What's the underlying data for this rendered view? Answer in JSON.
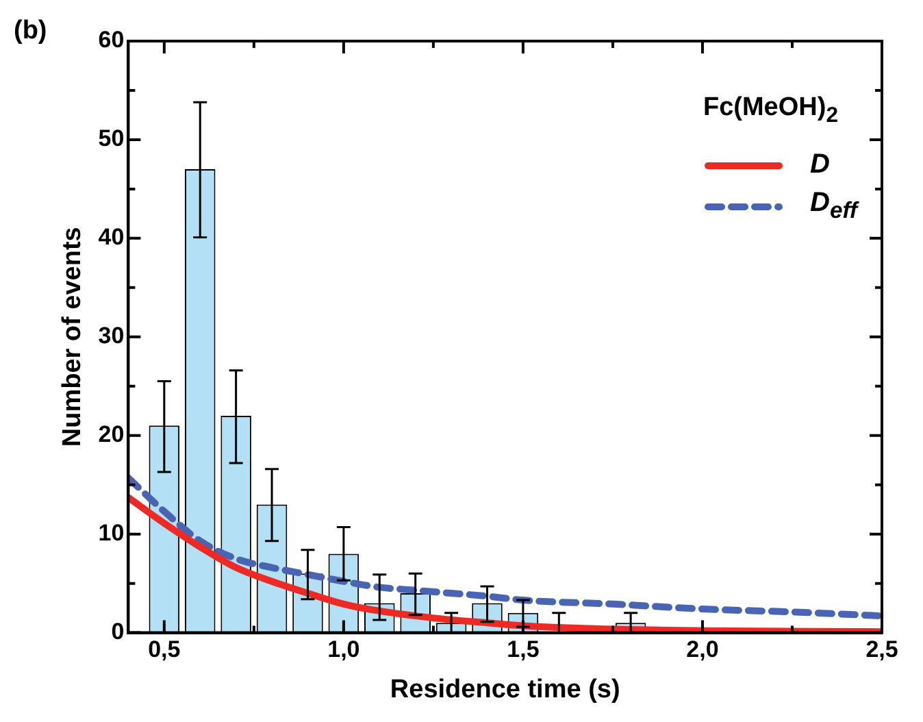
{
  "chart_data": {
    "type": "bar",
    "xlabel": "Residence time (s)",
    "ylabel": "Number of events",
    "legend_title": "Fc(MeOH)$_{2}$",
    "annotations": [
      "(b)"
    ],
    "x": [
      0.5,
      0.6,
      0.7,
      0.8,
      0.9,
      1.0,
      1.1,
      1.2,
      1.3,
      1.4,
      1.5,
      1.6,
      1.8
    ],
    "values": [
      21,
      47,
      22,
      13,
      6,
      8,
      3,
      4,
      1,
      3,
      2,
      0,
      1
    ],
    "errors": [
      [
        16.3,
        25.5
      ],
      [
        40.1,
        53.8
      ],
      [
        17.2,
        26.6
      ],
      [
        9.3,
        16.6
      ],
      [
        3.4,
        8.4
      ],
      [
        5.3,
        10.7
      ],
      [
        1.3,
        5.9
      ],
      [
        1.8,
        6
      ],
      [
        0,
        2
      ],
      [
        1.1,
        4.7
      ],
      [
        0.6,
        3.3
      ],
      [
        0,
        2
      ],
      [
        0,
        2
      ]
    ],
    "color": "#b3e0f5",
    "series": [
      {
        "type": "line",
        "name": "D",
        "color": "#ee2a24",
        "line_style": "solid",
        "x": [
          0.4,
          0.5,
          0.6,
          0.7,
          0.8,
          0.9,
          1.0,
          1.1,
          1.2,
          1.3,
          1.4,
          1.5,
          1.7,
          2.0,
          2.5
        ],
        "values": [
          13.7,
          11.1,
          8.7,
          6.6,
          5.2,
          4.0,
          2.9,
          2.2,
          1.7,
          1.3,
          1.0,
          0.7,
          0.4,
          0.2,
          0.1
        ]
      },
      {
        "type": "line",
        "name": "D$_{eff}$",
        "color": "#4a64b4",
        "line_style": "dashed",
        "x": [
          0.4,
          0.5,
          0.6,
          0.7,
          0.8,
          0.9,
          1.0,
          1.1,
          1.2,
          1.3,
          1.4,
          1.5,
          1.75,
          2.0,
          2.25,
          2.5
        ],
        "values": [
          15.7,
          12.3,
          9.3,
          7.5,
          6.6,
          5.9,
          5.2,
          4.6,
          4.3,
          4.0,
          3.7,
          3.3,
          2.9,
          2.4,
          2.1,
          1.7
        ]
      }
    ],
    "xlim": [
      0.4,
      2.5
    ],
    "ylim": [
      0,
      60
    ],
    "xticks": [
      {
        "value": 0.5,
        "label": "0,5"
      },
      {
        "value": 0.75,
        "label": null
      },
      {
        "value": 1.0,
        "label": "1,0"
      },
      {
        "value": 1.25,
        "label": null
      },
      {
        "value": 1.5,
        "label": "1,5"
      },
      {
        "value": 1.75,
        "label": null
      },
      {
        "value": 2.0,
        "label": "2,0"
      },
      {
        "value": 2.25,
        "label": null
      },
      {
        "value": 2.5,
        "label": "2,5"
      }
    ],
    "yticks": [
      0,
      {
        "value": 5,
        "label": null
      },
      10,
      {
        "value": 15,
        "label": null
      },
      20,
      {
        "value": 25,
        "label": null
      },
      30,
      {
        "value": 35,
        "label": null
      },
      40,
      {
        "value": 45,
        "label": null
      },
      50,
      {
        "value": 55,
        "label": null
      },
      60
    ],
    "grid": false,
    "legend": "top right"
  }
}
